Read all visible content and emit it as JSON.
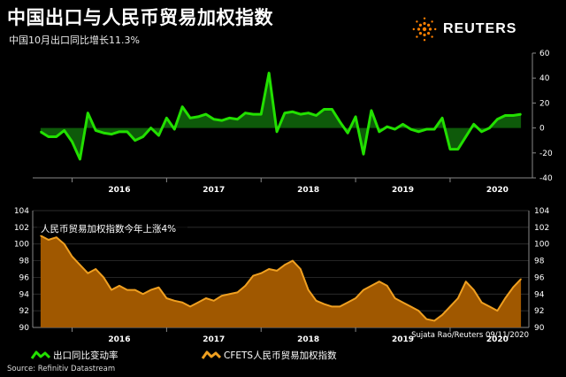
{
  "header": {
    "title": "中国出口与人民币贸易加权指数",
    "subtitle": "中国10月出口同比增长11.3%",
    "brand": "REUTERS",
    "brand_icon": "reuters-dot-logo-icon"
  },
  "footer": {
    "credit": "Sujata Rao/Reuters 09/11/2020",
    "source": "Source: Refinitiv Datastream"
  },
  "colors": {
    "green_line": "#22e000",
    "green_fill": "#0e5a0a",
    "orange_line": "#f0a020",
    "orange_fill": "#a05800",
    "brand_orange": "#ff8000"
  },
  "chart_data": [
    {
      "type": "area",
      "title": "",
      "ylabel": "",
      "axis": "right",
      "ylim": [
        -40,
        60
      ],
      "y_ticks": [
        -40,
        -20,
        0,
        20,
        40,
        60
      ],
      "x_ticks": [
        "2016",
        "2017",
        "2018",
        "2019",
        "2020"
      ],
      "legend": "出口同比变动率",
      "series": [
        {
          "name": "出口同比变动率",
          "x": [
            "2015-09",
            "2015-10",
            "2015-11",
            "2015-12",
            "2016-01",
            "2016-02",
            "2016-03",
            "2016-04",
            "2016-05",
            "2016-06",
            "2016-07",
            "2016-08",
            "2016-09",
            "2016-10",
            "2016-11",
            "2016-12",
            "2017-01",
            "2017-02",
            "2017-03",
            "2017-04",
            "2017-05",
            "2017-06",
            "2017-07",
            "2017-08",
            "2017-09",
            "2017-10",
            "2017-11",
            "2017-12",
            "2018-01",
            "2018-02",
            "2018-03",
            "2018-04",
            "2018-05",
            "2018-06",
            "2018-07",
            "2018-08",
            "2018-09",
            "2018-10",
            "2018-11",
            "2018-12",
            "2019-01",
            "2019-02",
            "2019-03",
            "2019-04",
            "2019-05",
            "2019-06",
            "2019-07",
            "2019-08",
            "2019-09",
            "2019-10",
            "2019-11",
            "2019-12",
            "2020-01",
            "2020-02",
            "2020-03",
            "2020-04",
            "2020-05",
            "2020-06",
            "2020-07",
            "2020-08",
            "2020-09",
            "2020-10"
          ],
          "values": [
            -3,
            -7,
            -7,
            -2,
            -11,
            -25,
            12,
            -2,
            -4,
            -5,
            -3,
            -3,
            -10,
            -7,
            0,
            -6,
            8,
            -1,
            17,
            8,
            9,
            11,
            7,
            6,
            8,
            7,
            12,
            11,
            11,
            44,
            -3,
            12,
            13,
            11,
            12,
            10,
            15,
            15,
            5,
            -4,
            9,
            -21,
            14,
            -3,
            1,
            -1,
            3,
            -1,
            -3,
            -1,
            -1,
            8,
            -17,
            -17,
            -7,
            3,
            -3,
            0,
            7,
            10,
            10,
            11
          ]
        }
      ]
    },
    {
      "type": "area",
      "title": "人民币贸易加权指数今年上涨4%",
      "ylabel": "",
      "axis": "both",
      "ylim": [
        90,
        104
      ],
      "y_ticks": [
        90,
        92,
        94,
        96,
        98,
        100,
        102,
        104
      ],
      "x_ticks": [
        "2016",
        "2017",
        "2018",
        "2019",
        "2020"
      ],
      "legend": "CFETS人民币贸易加权指数",
      "series": [
        {
          "name": "CFETS人民币贸易加权指数",
          "x": [
            "2015-09",
            "2015-10",
            "2015-11",
            "2015-12",
            "2016-01",
            "2016-02",
            "2016-03",
            "2016-04",
            "2016-05",
            "2016-06",
            "2016-07",
            "2016-08",
            "2016-09",
            "2016-10",
            "2016-11",
            "2016-12",
            "2017-01",
            "2017-02",
            "2017-03",
            "2017-04",
            "2017-05",
            "2017-06",
            "2017-07",
            "2017-08",
            "2017-09",
            "2017-10",
            "2017-11",
            "2017-12",
            "2018-01",
            "2018-02",
            "2018-03",
            "2018-04",
            "2018-05",
            "2018-06",
            "2018-07",
            "2018-08",
            "2018-09",
            "2018-10",
            "2018-11",
            "2018-12",
            "2019-01",
            "2019-02",
            "2019-03",
            "2019-04",
            "2019-05",
            "2019-06",
            "2019-07",
            "2019-08",
            "2019-09",
            "2019-10",
            "2019-11",
            "2019-12",
            "2020-01",
            "2020-02",
            "2020-03",
            "2020-04",
            "2020-05",
            "2020-06",
            "2020-07",
            "2020-08",
            "2020-09",
            "2020-10"
          ],
          "values": [
            101,
            100.5,
            100.8,
            100,
            98.5,
            97.5,
            96.5,
            97,
            96,
            94.5,
            95,
            94.5,
            94.5,
            94,
            94.5,
            94.8,
            93.5,
            93.2,
            93,
            92.5,
            93,
            93.5,
            93.2,
            93.8,
            94,
            94.2,
            95,
            96.2,
            96.5,
            97,
            96.8,
            97.5,
            98,
            97,
            94.5,
            93.2,
            92.8,
            92.5,
            92.5,
            93,
            93.5,
            94.5,
            95,
            95.5,
            95,
            93.5,
            93,
            92.5,
            92,
            91,
            90.8,
            91.5,
            92.5,
            93.5,
            95.5,
            94.5,
            93,
            92.5,
            92,
            93.5,
            94.8,
            95.8
          ]
        }
      ]
    }
  ]
}
